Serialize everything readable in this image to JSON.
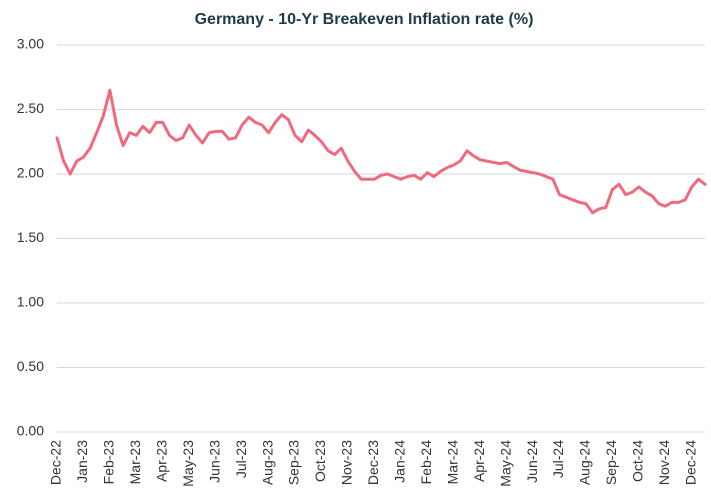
{
  "chart_data": {
    "type": "line",
    "title": "Germany  - 10-Yr Breakeven Inflation rate (%)",
    "categories": [
      "Dec-22",
      null,
      null,
      null,
      "Jan-23",
      null,
      null,
      null,
      "Feb-23",
      null,
      null,
      null,
      "Mar-23",
      null,
      null,
      null,
      "Apr-23",
      null,
      null,
      null,
      "May-23",
      null,
      null,
      null,
      "Jun-23",
      null,
      null,
      null,
      "Jul-23",
      null,
      null,
      null,
      "Aug-23",
      null,
      null,
      null,
      "Sep-23",
      null,
      null,
      null,
      "Oct-23",
      null,
      null,
      null,
      "Nov-23",
      null,
      null,
      null,
      "Dec-23",
      null,
      null,
      null,
      "Jan-24",
      null,
      null,
      null,
      "Feb-24",
      null,
      null,
      null,
      "Mar-24",
      null,
      null,
      null,
      "Apr-24",
      null,
      null,
      null,
      "May-24",
      null,
      null,
      null,
      "Jun-24",
      null,
      null,
      null,
      "Jul-24",
      null,
      null,
      null,
      "Aug-24",
      null,
      null,
      null,
      "Sep-24",
      null,
      null,
      null,
      "Oct-24",
      null,
      null,
      null,
      "Nov-24",
      null,
      null,
      null,
      "Dec-24",
      null,
      null
    ],
    "series": [
      {
        "color": "#f06a7e",
        "values": [
          2.28,
          2.1,
          2.0,
          2.1,
          2.13,
          2.2,
          2.32,
          2.45,
          2.65,
          2.38,
          2.22,
          2.32,
          2.3,
          2.37,
          2.32,
          2.4,
          2.4,
          2.3,
          2.26,
          2.28,
          2.38,
          2.3,
          2.24,
          2.32,
          2.33,
          2.33,
          2.27,
          2.28,
          2.38,
          2.44,
          2.4,
          2.38,
          2.32,
          2.4,
          2.46,
          2.42,
          2.3,
          2.25,
          2.34,
          2.3,
          2.25,
          2.18,
          2.15,
          2.2,
          2.1,
          2.02,
          1.96,
          1.96,
          1.96,
          1.99,
          2.0,
          1.98,
          1.96,
          1.98,
          1.99,
          1.96,
          2.01,
          1.98,
          2.02,
          2.05,
          2.07,
          2.1,
          2.18,
          2.14,
          2.11,
          2.1,
          2.09,
          2.08,
          2.09,
          2.06,
          2.03,
          2.02,
          2.01,
          2.0,
          1.98,
          1.96,
          1.84,
          1.82,
          1.8,
          1.78,
          1.77,
          1.7,
          1.73,
          1.74,
          1.88,
          1.92,
          1.84,
          1.86,
          1.9,
          1.86,
          1.83,
          1.77,
          1.75,
          1.78,
          1.78,
          1.8,
          1.9,
          1.96,
          1.92
        ]
      }
    ],
    "ylim": [
      0,
      3
    ],
    "yticks": [
      {
        "value": 0,
        "label": "0.00"
      },
      {
        "value": 0.5,
        "label": "0.50"
      },
      {
        "value": 1,
        "label": "1.00"
      },
      {
        "value": 1.5,
        "label": "1.50"
      },
      {
        "value": 2,
        "label": "2.00"
      },
      {
        "value": 2.5,
        "label": "2.50"
      },
      {
        "value": 3,
        "label": "3.00"
      }
    ],
    "grid": true
  }
}
